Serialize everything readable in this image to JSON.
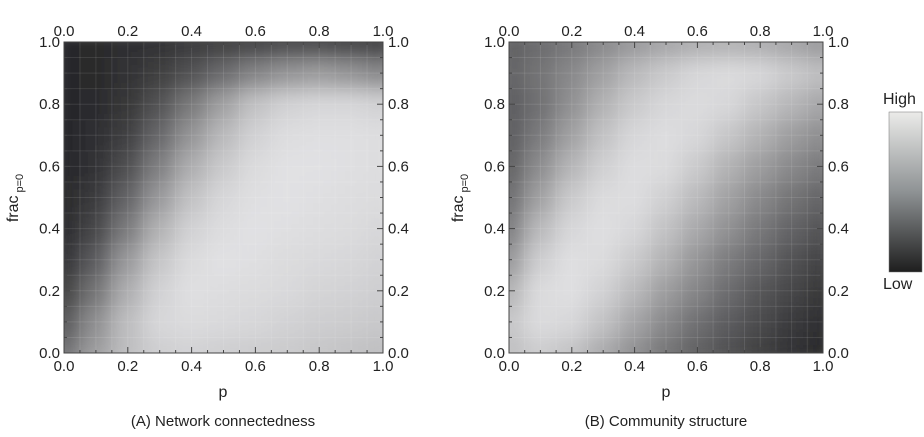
{
  "panels": [
    {
      "caption": "(A) Network connectedness",
      "xlabel": "p",
      "ylabel_main": "frac",
      "ylabel_sub": "p=0",
      "pattern": "connectedness"
    },
    {
      "caption": "(B) Community structure",
      "xlabel": "p",
      "ylabel_main": "frac",
      "ylabel_sub": "p=0",
      "pattern": "community"
    }
  ],
  "ticks": {
    "x": [
      "0.0",
      "0.2",
      "0.4",
      "0.6",
      "0.8",
      "1.0"
    ],
    "y": [
      "0.0",
      "0.2",
      "0.4",
      "0.6",
      "0.8",
      "1.0"
    ]
  },
  "legend": {
    "high": "High",
    "low": "Low"
  },
  "colors": {
    "high": "#ebebe9",
    "low": "#1e1e1e",
    "frame": "#444444"
  },
  "chart_data": [
    {
      "type": "heatmap",
      "title": "(A) Network connectedness",
      "xlabel": "p",
      "ylabel": "frac_{p=0}",
      "xlim": [
        0,
        1
      ],
      "ylim": [
        0,
        1
      ],
      "grid": [
        [
          0.4,
          0.62,
          0.78,
          0.86,
          0.88,
          0.86,
          0.85,
          0.84,
          0.82,
          0.8,
          0.78
        ],
        [
          0.28,
          0.55,
          0.78,
          0.9,
          0.92,
          0.91,
          0.9,
          0.88,
          0.86,
          0.85,
          0.83
        ],
        [
          0.16,
          0.42,
          0.7,
          0.88,
          0.94,
          0.93,
          0.92,
          0.91,
          0.89,
          0.88,
          0.86
        ],
        [
          0.1,
          0.3,
          0.6,
          0.82,
          0.92,
          0.95,
          0.94,
          0.92,
          0.91,
          0.9,
          0.88
        ],
        [
          0.07,
          0.2,
          0.46,
          0.72,
          0.88,
          0.93,
          0.95,
          0.94,
          0.93,
          0.92,
          0.9
        ],
        [
          0.06,
          0.14,
          0.34,
          0.6,
          0.8,
          0.9,
          0.94,
          0.95,
          0.94,
          0.93,
          0.92
        ],
        [
          0.05,
          0.1,
          0.24,
          0.48,
          0.7,
          0.84,
          0.92,
          0.95,
          0.95,
          0.94,
          0.93
        ],
        [
          0.05,
          0.08,
          0.17,
          0.36,
          0.58,
          0.76,
          0.88,
          0.93,
          0.94,
          0.94,
          0.93
        ],
        [
          0.05,
          0.07,
          0.12,
          0.26,
          0.45,
          0.64,
          0.8,
          0.88,
          0.9,
          0.9,
          0.88
        ],
        [
          0.05,
          0.06,
          0.1,
          0.16,
          0.26,
          0.38,
          0.5,
          0.58,
          0.62,
          0.58,
          0.52
        ],
        [
          0.05,
          0.06,
          0.08,
          0.1,
          0.14,
          0.16,
          0.18,
          0.2,
          0.2,
          0.18,
          0.15
        ]
      ],
      "row_order": "y from 0.0 (first row) to 1.0 (last row), 11 rows",
      "col_order": "x from 0.0 (first col) to 1.0 (last col), 11 cols",
      "value_scale": "0 = Low, 1 = High"
    },
    {
      "type": "heatmap",
      "title": "(B) Community structure",
      "xlabel": "p",
      "ylabel": "frac_{p=0}",
      "xlim": [
        0,
        1
      ],
      "ylim": [
        0,
        1
      ],
      "grid": [
        [
          0.78,
          0.85,
          0.8,
          0.68,
          0.55,
          0.42,
          0.32,
          0.24,
          0.16,
          0.1,
          0.06
        ],
        [
          0.82,
          0.92,
          0.9,
          0.8,
          0.66,
          0.52,
          0.4,
          0.3,
          0.22,
          0.14,
          0.08
        ],
        [
          0.72,
          0.92,
          0.94,
          0.88,
          0.76,
          0.62,
          0.5,
          0.38,
          0.28,
          0.2,
          0.12
        ],
        [
          0.58,
          0.86,
          0.94,
          0.92,
          0.84,
          0.72,
          0.58,
          0.46,
          0.36,
          0.26,
          0.18
        ],
        [
          0.46,
          0.76,
          0.9,
          0.94,
          0.9,
          0.8,
          0.68,
          0.56,
          0.44,
          0.34,
          0.26
        ],
        [
          0.38,
          0.64,
          0.84,
          0.92,
          0.93,
          0.87,
          0.76,
          0.64,
          0.52,
          0.42,
          0.34
        ],
        [
          0.32,
          0.54,
          0.74,
          0.87,
          0.93,
          0.92,
          0.84,
          0.72,
          0.62,
          0.52,
          0.44
        ],
        [
          0.3,
          0.46,
          0.64,
          0.8,
          0.9,
          0.93,
          0.9,
          0.82,
          0.72,
          0.62,
          0.54
        ],
        [
          0.3,
          0.4,
          0.56,
          0.72,
          0.84,
          0.9,
          0.92,
          0.9,
          0.82,
          0.74,
          0.66
        ],
        [
          0.34,
          0.42,
          0.52,
          0.64,
          0.76,
          0.84,
          0.9,
          0.92,
          0.9,
          0.84,
          0.78
        ],
        [
          0.32,
          0.38,
          0.44,
          0.52,
          0.6,
          0.66,
          0.7,
          0.72,
          0.7,
          0.66,
          0.6
        ]
      ],
      "row_order": "y from 0.0 (first row) to 1.0 (last row), 11 rows",
      "col_order": "x from 0.0 (first col) to 1.0 (last col), 11 cols",
      "value_scale": "0 = Low, 1 = High"
    }
  ]
}
